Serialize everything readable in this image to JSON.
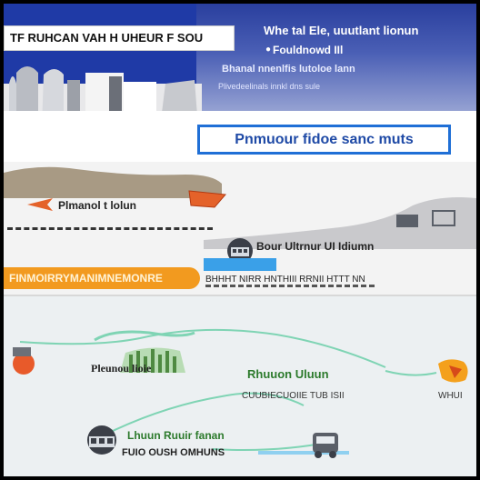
{
  "header": {
    "title": "TF RUHCAN VAH H UHEUR F SOU",
    "headline": "Whe tal Ele, uuutlant lionun",
    "subheadline": "Fouldnowd IIl",
    "line_3": "Bhanal nnenlfis lutoloe lann",
    "line_4": "Plivedeelinals innkl dns sule"
  },
  "section_tag": "Pnmuour fidoe sanc muts",
  "landscape": {
    "label_1": "Plmanol t lolun",
    "label_2": "Bour Ultrnur UI Idiumn",
    "orange_bar": "FINMOIRRYMANIMNEMONRE",
    "label_3": "BHHHT NIRR HNTHIII RRNII HTTT NN"
  },
  "diagram": {
    "label_4": "Pleunou lioie",
    "label_5": "Rhuuon Uluun",
    "label_6": "CUUBIECUOIIE TUB ISII",
    "label_7": "WHUI",
    "label_8": "Lhuun Ruuir fanan",
    "label_9": "FUIO OUSH OMHUNS"
  },
  "colors": {
    "header_blue": "#1f3aa6",
    "tag_border": "#1f6fd6",
    "orange": "#f29a1f",
    "green": "#2c7a2c",
    "teal_path": "#7fd4b4"
  }
}
